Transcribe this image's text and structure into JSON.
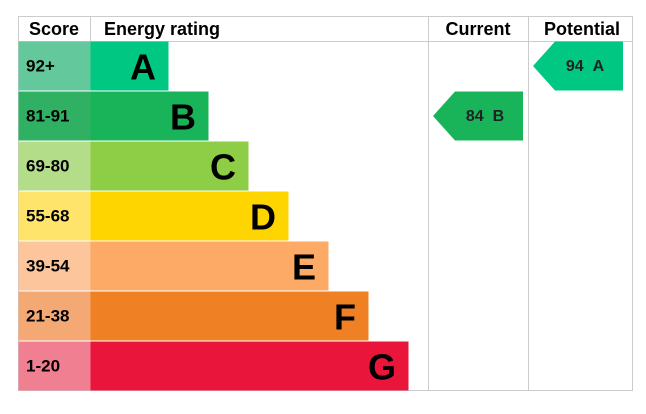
{
  "header": {
    "score": "Score",
    "rating": "Energy rating",
    "current": "Current",
    "potential": "Potential"
  },
  "bands": [
    {
      "score": "92+",
      "letter": "A",
      "color": "#00c781",
      "light": "#63c99c"
    },
    {
      "score": "81-91",
      "letter": "B",
      "color": "#19b459",
      "light": "#2fb063"
    },
    {
      "score": "69-80",
      "letter": "C",
      "color": "#8dce46",
      "light": "#b3dd88"
    },
    {
      "score": "55-68",
      "letter": "D",
      "color": "#ffd500",
      "light": "#ffe46c"
    },
    {
      "score": "39-54",
      "letter": "E",
      "color": "#fcaa65",
      "light": "#fdc59b"
    },
    {
      "score": "21-38",
      "letter": "F",
      "color": "#ef8023",
      "light": "#f4a874"
    },
    {
      "score": "1-20",
      "letter": "G",
      "color": "#e9153b",
      "light": "#f07f92"
    }
  ],
  "current": {
    "value": 84,
    "rating": "B"
  },
  "potential": {
    "value": 94,
    "rating": "A"
  }
}
